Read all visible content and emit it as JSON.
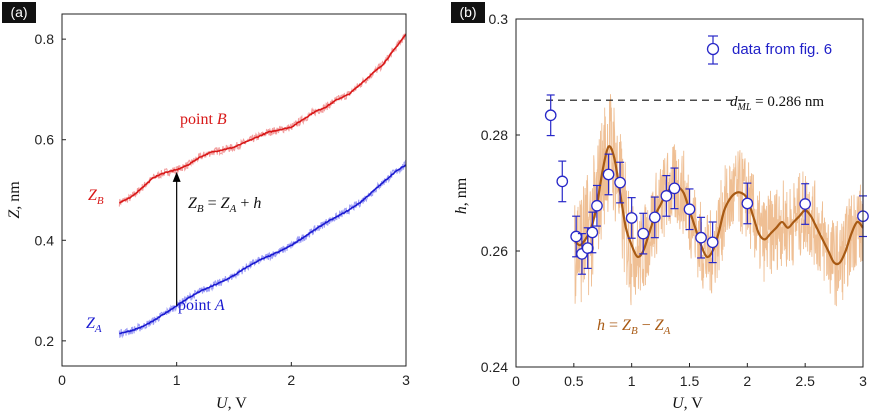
{
  "chart_data": [
    {
      "panel": "(a)",
      "type": "line",
      "xlabel": "U, V",
      "ylabel": "Z, nm",
      "xlim": [
        0,
        3
      ],
      "ylim": [
        0.15,
        0.85
      ],
      "xticks": [
        "0",
        "1",
        "2",
        "3"
      ],
      "yticks": [
        "0.2",
        "0.4",
        "0.6",
        "0.8"
      ],
      "series": [
        {
          "name": "Z_B",
          "label": "point B",
          "color": "#e02020",
          "x": [
            0.5,
            0.6,
            0.7,
            0.8,
            0.9,
            1.0,
            1.1,
            1.2,
            1.3,
            1.4,
            1.5,
            1.6,
            1.7,
            1.8,
            1.9,
            2.0,
            2.1,
            2.2,
            2.3,
            2.4,
            2.5,
            2.6,
            2.7,
            2.8,
            2.9,
            3.0
          ],
          "y": [
            0.475,
            0.485,
            0.505,
            0.525,
            0.535,
            0.54,
            0.55,
            0.565,
            0.575,
            0.58,
            0.585,
            0.595,
            0.605,
            0.615,
            0.62,
            0.625,
            0.64,
            0.655,
            0.665,
            0.68,
            0.69,
            0.71,
            0.73,
            0.75,
            0.78,
            0.81
          ]
        },
        {
          "name": "Z_A",
          "label": "point A",
          "color": "#2020e0",
          "x": [
            0.5,
            0.6,
            0.7,
            0.8,
            0.9,
            1.0,
            1.1,
            1.2,
            1.3,
            1.4,
            1.5,
            1.6,
            1.7,
            1.8,
            1.9,
            2.0,
            2.1,
            2.2,
            2.3,
            2.4,
            2.5,
            2.6,
            2.7,
            2.8,
            2.9,
            3.0
          ],
          "y": [
            0.215,
            0.22,
            0.228,
            0.24,
            0.255,
            0.27,
            0.285,
            0.298,
            0.308,
            0.318,
            0.33,
            0.345,
            0.358,
            0.368,
            0.378,
            0.39,
            0.405,
            0.42,
            0.435,
            0.447,
            0.46,
            0.475,
            0.495,
            0.515,
            0.535,
            0.55
          ]
        }
      ],
      "annotations": {
        "zb_label": "Z_B",
        "za_label": "Z_A",
        "point_b": "point B",
        "point_a": "point A",
        "equation": "Z_B = Z_A + h",
        "arrow_x": 1.0
      }
    },
    {
      "panel": "(b)",
      "type": "line",
      "xlabel": "U, V",
      "ylabel": "h, nm",
      "xlim": [
        0,
        3
      ],
      "ylim": [
        0.24,
        0.3
      ],
      "xticks": [
        "0",
        "0.5",
        "1",
        "1.5",
        "2",
        "2.5",
        "3"
      ],
      "yticks": [
        "0.24",
        "0.26",
        "0.28",
        "0.3"
      ],
      "reference_line": {
        "y": 0.286,
        "label": "d_ML = 0.286 nm"
      },
      "smooth_series": {
        "name": "h = Z_B − Z_A",
        "color": "#b0651a",
        "x": [
          0.5,
          0.55,
          0.6,
          0.65,
          0.7,
          0.75,
          0.8,
          0.85,
          0.9,
          0.95,
          1.0,
          1.05,
          1.1,
          1.15,
          1.2,
          1.25,
          1.3,
          1.35,
          1.4,
          1.45,
          1.5,
          1.55,
          1.6,
          1.65,
          1.7,
          1.75,
          1.8,
          1.85,
          1.9,
          1.95,
          2.0,
          2.05,
          2.1,
          2.15,
          2.2,
          2.25,
          2.3,
          2.35,
          2.4,
          2.45,
          2.5,
          2.55,
          2.6,
          2.65,
          2.7,
          2.75,
          2.8,
          2.85,
          2.9,
          2.95,
          3.0
        ],
        "y": [
          0.262,
          0.261,
          0.262,
          0.264,
          0.268,
          0.274,
          0.278,
          0.276,
          0.27,
          0.264,
          0.261,
          0.259,
          0.26,
          0.263,
          0.266,
          0.268,
          0.27,
          0.271,
          0.271,
          0.27,
          0.267,
          0.264,
          0.261,
          0.259,
          0.26,
          0.263,
          0.267,
          0.269,
          0.27,
          0.27,
          0.269,
          0.266,
          0.263,
          0.262,
          0.263,
          0.264,
          0.265,
          0.264,
          0.265,
          0.266,
          0.267,
          0.266,
          0.264,
          0.262,
          0.26,
          0.258,
          0.258,
          0.26,
          0.263,
          0.265,
          0.264
        ]
      },
      "scatter_series": {
        "name": "data from fig. 6",
        "color": "#2020c8",
        "points": [
          {
            "x": 0.3,
            "y": 0.2834,
            "err": 0.0035
          },
          {
            "x": 0.4,
            "y": 0.272,
            "err": 0.0035
          },
          {
            "x": 0.52,
            "y": 0.2625,
            "err": 0.0035
          },
          {
            "x": 0.57,
            "y": 0.2595,
            "err": 0.0035
          },
          {
            "x": 0.62,
            "y": 0.2605,
            "err": 0.0035
          },
          {
            "x": 0.66,
            "y": 0.2632,
            "err": 0.0035
          },
          {
            "x": 0.7,
            "y": 0.2678,
            "err": 0.0035
          },
          {
            "x": 0.8,
            "y": 0.2732,
            "err": 0.0035
          },
          {
            "x": 0.9,
            "y": 0.2718,
            "err": 0.0035
          },
          {
            "x": 1.0,
            "y": 0.2657,
            "err": 0.0035
          },
          {
            "x": 1.1,
            "y": 0.263,
            "err": 0.0035
          },
          {
            "x": 1.2,
            "y": 0.2658,
            "err": 0.0035
          },
          {
            "x": 1.3,
            "y": 0.2695,
            "err": 0.0035
          },
          {
            "x": 1.37,
            "y": 0.2708,
            "err": 0.0035
          },
          {
            "x": 1.5,
            "y": 0.2672,
            "err": 0.0035
          },
          {
            "x": 1.6,
            "y": 0.2623,
            "err": 0.0035
          },
          {
            "x": 1.7,
            "y": 0.2615,
            "err": 0.0035
          },
          {
            "x": 2.0,
            "y": 0.2682,
            "err": 0.0035
          },
          {
            "x": 2.5,
            "y": 0.2681,
            "err": 0.0035
          },
          {
            "x": 3.0,
            "y": 0.266,
            "err": 0.0035
          }
        ]
      },
      "legend": {
        "label": "data from fig. 6",
        "position": "top-right"
      },
      "annotations": {
        "h_label": "h = Z_B − Z_A"
      }
    }
  ],
  "colors": {
    "red_line": "#d81818",
    "red_noise": "#f2a0a0",
    "blue_line": "#1a1ad0",
    "blue_noise": "#a0a0f5",
    "brown_line": "#a85a14",
    "brown_noise": "#efbf94",
    "marker": "#2828c8"
  }
}
